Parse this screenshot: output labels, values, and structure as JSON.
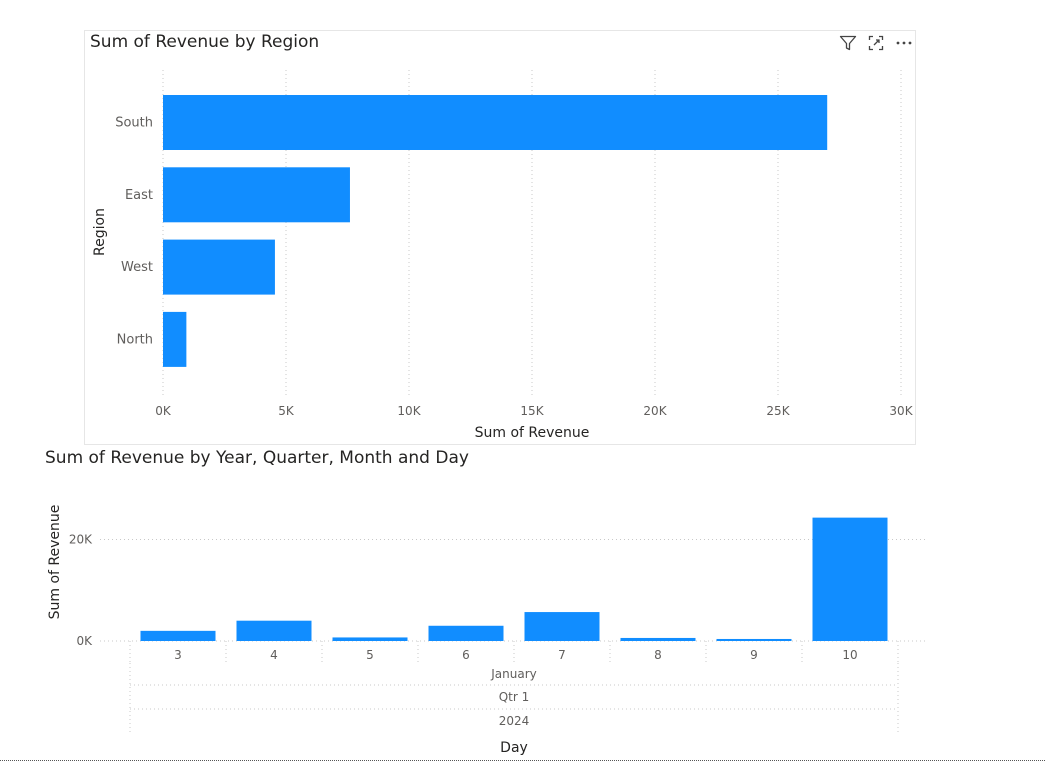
{
  "chart_data": [
    {
      "type": "bar",
      "orientation": "horizontal",
      "title": "Sum of Revenue by Region",
      "xlabel": "Sum of Revenue",
      "ylabel": "Region",
      "categories": [
        "South",
        "East",
        "West",
        "North"
      ],
      "values": [
        27000,
        7600,
        4550,
        950
      ],
      "xlim": [
        0,
        30000
      ],
      "x_ticks": [
        0,
        5000,
        10000,
        15000,
        20000,
        25000,
        30000
      ],
      "x_tick_labels": [
        "0K",
        "5K",
        "10K",
        "15K",
        "20K",
        "25K",
        "30K"
      ],
      "grid": "vertical dotted",
      "color": "#118dff"
    },
    {
      "type": "bar",
      "orientation": "vertical",
      "title": "Sum of Revenue by Year, Quarter, Month and Day",
      "xlabel": "Day",
      "ylabel": "Sum of Revenue",
      "categories": [
        "3",
        "4",
        "5",
        "6",
        "7",
        "8",
        "9",
        "10"
      ],
      "values": [
        2000,
        4000,
        700,
        3000,
        5700,
        600,
        400,
        24300
      ],
      "hierarchy": {
        "month": "January",
        "quarter": "Qtr 1",
        "year": "2024"
      },
      "ylim": [
        0,
        26000
      ],
      "y_ticks": [
        0,
        20000
      ],
      "y_tick_labels": [
        "0K",
        "20K"
      ],
      "grid": "horizontal dotted",
      "color": "#118dff"
    }
  ],
  "icons": {
    "filter": "filter-icon",
    "focus": "focus-mode-icon",
    "more": "more-options-icon"
  }
}
